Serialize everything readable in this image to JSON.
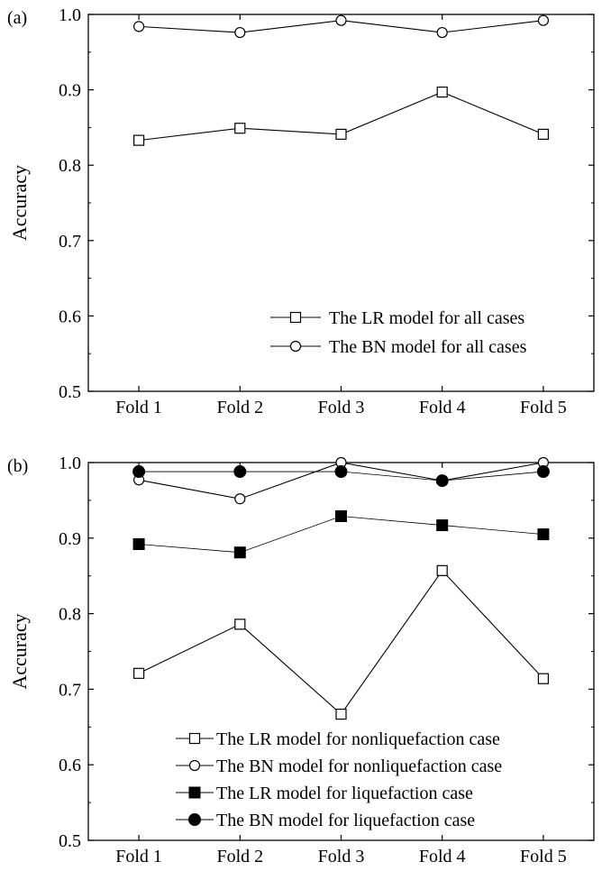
{
  "chart_data": [
    {
      "type": "line",
      "panel_label": "(a)",
      "ylabel": "Accuracy",
      "categories": [
        "Fold 1",
        "Fold 2",
        "Fold 3",
        "Fold 4",
        "Fold 5"
      ],
      "ylim": [
        0.5,
        1.0
      ],
      "yticks": [
        "0.5",
        "0.6",
        "0.7",
        "0.8",
        "0.9",
        "1.0"
      ],
      "legend_position": "bottom-right",
      "series": [
        {
          "name": "The LR model for all cases",
          "marker": "square-open",
          "values": [
            0.833,
            0.849,
            0.841,
            0.897,
            0.841
          ]
        },
        {
          "name": "The BN model for all cases",
          "marker": "circle-open",
          "values": [
            0.984,
            0.976,
            0.992,
            0.976,
            0.992
          ]
        }
      ]
    },
    {
      "type": "line",
      "panel_label": "(b)",
      "ylabel": "Accuracy",
      "categories": [
        "Fold 1",
        "Fold 2",
        "Fold 3",
        "Fold 4",
        "Fold 5"
      ],
      "ylim": [
        0.5,
        1.0
      ],
      "yticks": [
        "0.5",
        "0.6",
        "0.7",
        "0.8",
        "0.9",
        "1.0"
      ],
      "legend_position": "bottom-right",
      "series": [
        {
          "name": "The LR model for nonliquefaction case",
          "marker": "square-open",
          "values": [
            0.721,
            0.786,
            0.667,
            0.857,
            0.714
          ]
        },
        {
          "name": "The BN model for nonliquefaction case",
          "marker": "circle-open",
          "values": [
            0.977,
            0.952,
            1.0,
            0.976,
            1.0
          ]
        },
        {
          "name": "The LR model for liquefaction case",
          "marker": "square-filled",
          "values": [
            0.892,
            0.881,
            0.929,
            0.917,
            0.905
          ]
        },
        {
          "name": "The BN model for liquefaction case",
          "marker": "circle-filled",
          "values": [
            0.988,
            0.988,
            0.988,
            0.976,
            0.988
          ]
        }
      ]
    }
  ]
}
